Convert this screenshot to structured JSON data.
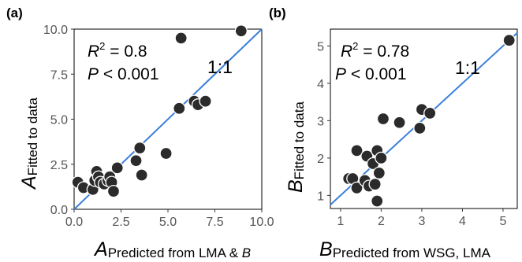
{
  "chart_data": [
    {
      "type": "scatter",
      "panel_label": "(a)",
      "x_axis": {
        "main": "A",
        "sub": "Predicted from LMA & ",
        "sub_italic": "B"
      },
      "y_axis": {
        "main": "A",
        "sub": "Fitted to data"
      },
      "xlim": [
        0,
        10
      ],
      "ylim": [
        0,
        10
      ],
      "xticks": [
        "0.0",
        "2.5",
        "5.0",
        "7.5",
        "10.0"
      ],
      "yticks": [
        "0.0",
        "2.5",
        "5.0",
        "7.5",
        "10.0"
      ],
      "xtick_values": [
        0,
        2.5,
        5,
        7.5,
        10
      ],
      "ytick_values": [
        0,
        2.5,
        5,
        7.5,
        10
      ],
      "r2_label": "R",
      "r2_value": " = 0.8",
      "p_label": "P",
      "p_value": " < 0.001",
      "line_label": "1:1",
      "line_color": "#3b7fd9",
      "point_color": "#2b2b2b",
      "points": [
        {
          "x": 0.2,
          "y": 1.5
        },
        {
          "x": 0.5,
          "y": 1.2
        },
        {
          "x": 1.0,
          "y": 1.1
        },
        {
          "x": 1.1,
          "y": 1.6
        },
        {
          "x": 1.2,
          "y": 2.1
        },
        {
          "x": 1.3,
          "y": 1.8
        },
        {
          "x": 1.4,
          "y": 1.5
        },
        {
          "x": 1.6,
          "y": 1.4
        },
        {
          "x": 1.8,
          "y": 1.6
        },
        {
          "x": 1.9,
          "y": 1.8
        },
        {
          "x": 2.0,
          "y": 1.5
        },
        {
          "x": 2.1,
          "y": 1.0
        },
        {
          "x": 2.3,
          "y": 2.3
        },
        {
          "x": 3.3,
          "y": 2.7
        },
        {
          "x": 3.5,
          "y": 3.4
        },
        {
          "x": 3.6,
          "y": 1.9
        },
        {
          "x": 4.9,
          "y": 3.1
        },
        {
          "x": 5.6,
          "y": 5.6
        },
        {
          "x": 5.7,
          "y": 9.5
        },
        {
          "x": 6.4,
          "y": 6.0
        },
        {
          "x": 6.6,
          "y": 5.8
        },
        {
          "x": 7.0,
          "y": 6.0
        },
        {
          "x": 8.9,
          "y": 9.9
        }
      ]
    },
    {
      "type": "scatter",
      "panel_label": "(b)",
      "x_axis": {
        "main": "B",
        "sub": "Predicted from WSG, LMA",
        "sub_italic": ""
      },
      "y_axis": {
        "main": "B",
        "sub": "Fitted to data"
      },
      "xlim": [
        0.75,
        5.35
      ],
      "ylim": [
        0.65,
        5.45
      ],
      "xticks": [
        "1",
        "2",
        "3",
        "4",
        "5"
      ],
      "yticks": [
        "1",
        "2",
        "3",
        "4",
        "5"
      ],
      "xtick_values": [
        1,
        2,
        3,
        4,
        5
      ],
      "ytick_values": [
        1,
        2,
        3,
        4,
        5
      ],
      "r2_label": "R",
      "r2_value": " = 0.78",
      "p_label": "P",
      "p_value": " < 0.001",
      "line_label": "1:1",
      "line_color": "#3b7fd9",
      "point_color": "#2b2b2b",
      "points": [
        {
          "x": 1.2,
          "y": 1.45
        },
        {
          "x": 1.3,
          "y": 1.45
        },
        {
          "x": 1.4,
          "y": 1.2
        },
        {
          "x": 1.4,
          "y": 2.2
        },
        {
          "x": 1.6,
          "y": 1.4
        },
        {
          "x": 1.65,
          "y": 2.05
        },
        {
          "x": 1.7,
          "y": 1.25
        },
        {
          "x": 1.8,
          "y": 1.85
        },
        {
          "x": 1.85,
          "y": 1.3
        },
        {
          "x": 1.9,
          "y": 0.85
        },
        {
          "x": 1.9,
          "y": 2.2
        },
        {
          "x": 1.95,
          "y": 1.6
        },
        {
          "x": 2.0,
          "y": 2.0
        },
        {
          "x": 2.05,
          "y": 3.05
        },
        {
          "x": 2.45,
          "y": 2.95
        },
        {
          "x": 2.95,
          "y": 2.8
        },
        {
          "x": 3.0,
          "y": 3.3
        },
        {
          "x": 3.2,
          "y": 3.2
        },
        {
          "x": 5.15,
          "y": 5.15
        }
      ]
    }
  ]
}
